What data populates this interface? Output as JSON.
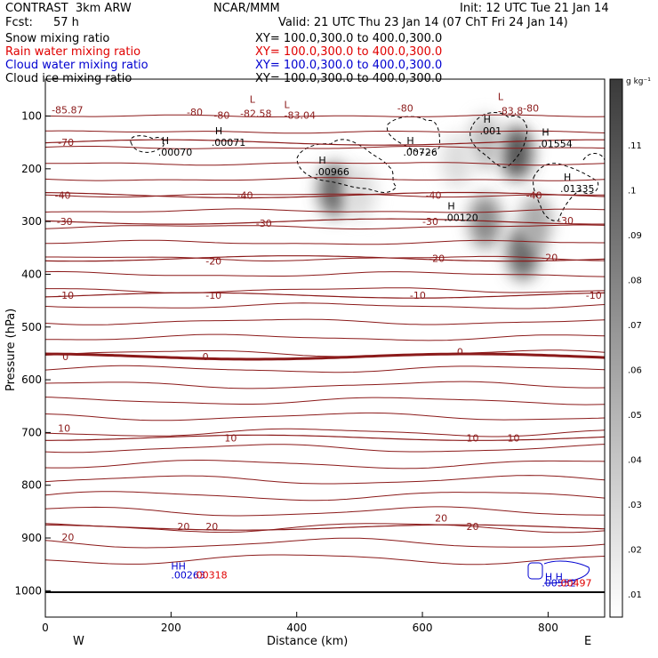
{
  "header": {
    "title_left": "CONTRAST  3km ARW",
    "title_center": "NCAR/MMM",
    "init": "Init: 12 UTC Tue 21 Jan 14",
    "fcst_label": "Fcst:",
    "fcst_value": "57 h",
    "valid": "Valid: 21 UTC Thu 23 Jan 14 (07 ChT Fri 24 Jan 14)"
  },
  "fields": [
    {
      "label": "Snow mixing ratio",
      "xy": "XY= 100.0,300.0 to 400.0,300.0",
      "color": "#000000"
    },
    {
      "label": "Rain water mixing ratio",
      "xy": "XY= 100.0,300.0 to 400.0,300.0",
      "color": "#e00000"
    },
    {
      "label": "Cloud water mixing ratio",
      "xy": "XY= 100.0,300.0 to 400.0,300.0",
      "color": "#0000d0"
    },
    {
      "label": "Cloud ice mixing ratio",
      "xy": "XY= 100.0,300.0 to 400.0,300.0",
      "color": "#000000"
    }
  ],
  "chart_data": {
    "type": "cross-section",
    "xlabel": "Distance (km)",
    "ylabel": "Pressure (hPa)",
    "xlim": [
      0,
      890
    ],
    "ylim": [
      1050,
      30
    ],
    "x_ticks": [
      "0",
      "200",
      "400",
      "600",
      "800"
    ],
    "y_ticks": [
      "100",
      "200",
      "300",
      "400",
      "500",
      "600",
      "700",
      "800",
      "900",
      "1000"
    ],
    "west_label": "W",
    "east_label": "E",
    "surface_pressure": 1005,
    "contour_color": "#8b1a1a",
    "temperature_contours": [
      {
        "label": "-70",
        "p": 150
      },
      {
        "label": "-40",
        "p": 250
      },
      {
        "label": "-30",
        "p": 300
      },
      {
        "label": "-20",
        "p": 370
      },
      {
        "label": "-10",
        "p": 440
      },
      {
        "label": "0",
        "p": 556,
        "bold": true
      },
      {
        "label": "10",
        "p": 710
      },
      {
        "label": "20",
        "p": 880
      }
    ],
    "contour_labels": [
      {
        "t": "-85.87",
        "x": 10,
        "p": 88
      },
      {
        "t": "-80",
        "x": 225,
        "p": 92
      },
      {
        "t": "-80",
        "x": 268,
        "p": 98
      },
      {
        "t": "-80",
        "x": 560,
        "p": 85
      },
      {
        "t": "-80",
        "x": 760,
        "p": 85
      },
      {
        "t": "-82.58",
        "x": 310,
        "p": 95
      },
      {
        "t": "-83.04",
        "x": 380,
        "p": 98
      },
      {
        "t": "-83.8",
        "x": 720,
        "p": 90
      },
      {
        "t": "-70",
        "x": 20,
        "p": 150
      },
      {
        "t": "-40",
        "x": 15,
        "p": 250
      },
      {
        "t": "-40",
        "x": 305,
        "p": 250
      },
      {
        "t": "-40",
        "x": 605,
        "p": 250
      },
      {
        "t": "-40",
        "x": 765,
        "p": 250
      },
      {
        "t": "-30",
        "x": 18,
        "p": 300
      },
      {
        "t": "-30",
        "x": 335,
        "p": 303
      },
      {
        "t": "-30",
        "x": 600,
        "p": 300
      },
      {
        "t": "-30",
        "x": 815,
        "p": 298
      },
      {
        "t": "-20",
        "x": 255,
        "p": 375
      },
      {
        "t": "-20",
        "x": 610,
        "p": 370
      },
      {
        "t": "-20",
        "x": 790,
        "p": 368
      },
      {
        "t": "-10",
        "x": 20,
        "p": 440
      },
      {
        "t": "-10",
        "x": 255,
        "p": 440
      },
      {
        "t": "-10",
        "x": 580,
        "p": 440
      },
      {
        "t": "-10",
        "x": 860,
        "p": 440
      },
      {
        "t": "0",
        "x": 27,
        "p": 556
      },
      {
        "t": "0",
        "x": 250,
        "p": 556
      },
      {
        "t": "0",
        "x": 655,
        "p": 547
      },
      {
        "t": "10",
        "x": 20,
        "p": 692
      },
      {
        "t": "10",
        "x": 285,
        "p": 710
      },
      {
        "t": "10",
        "x": 670,
        "p": 710
      },
      {
        "t": "10",
        "x": 735,
        "p": 710
      },
      {
        "t": "20",
        "x": 26,
        "p": 898
      },
      {
        "t": "20",
        "x": 210,
        "p": 878
      },
      {
        "t": "20",
        "x": 255,
        "p": 878
      },
      {
        "t": "20",
        "x": 620,
        "p": 862
      },
      {
        "t": "20",
        "x": 670,
        "p": 878
      }
    ],
    "extrema": [
      {
        "type": "H",
        "value": ".00070",
        "x": 185,
        "p": 158
      },
      {
        "type": "H",
        "value": ".00071",
        "x": 270,
        "p": 140
      },
      {
        "type": "H",
        "value": ".00966",
        "x": 435,
        "p": 195
      },
      {
        "type": "H",
        "value": ".00726",
        "x": 575,
        "p": 158
      },
      {
        "type": "H",
        "value": ".001",
        "x": 697,
        "p": 118
      },
      {
        "type": "H",
        "value": ".01554",
        "x": 790,
        "p": 142
      },
      {
        "type": "H",
        "value": ".01335",
        "x": 825,
        "p": 227
      },
      {
        "type": "H",
        "value": ".00120",
        "x": 640,
        "p": 282
      },
      {
        "type": "L",
        "value": "",
        "x": 380,
        "p": 90
      },
      {
        "type": "L",
        "value": "",
        "x": 325,
        "p": 80
      },
      {
        "type": "L",
        "value": "",
        "x": 720,
        "p": 75
      }
    ],
    "surface_labels": [
      {
        "text": "HH",
        "x": 200,
        "p": 960,
        "color": "#0000d0"
      },
      {
        "text": ".00263",
        "x": 200,
        "p": 977,
        "color": "#0000d0"
      },
      {
        "text": ".00318",
        "x": 235,
        "p": 977,
        "color": "#e00000"
      },
      {
        "text": "H H",
        "x": 795,
        "p": 980,
        "color": "#0000d0"
      },
      {
        "text": ".00552",
        "x": 790,
        "p": 992,
        "color": "#0000d0"
      },
      {
        "text": ".00497",
        "x": 815,
        "p": 992,
        "color": "#e00000"
      }
    ],
    "colorbar": {
      "unit": "g kg⁻¹",
      "labels": [
        ".11",
        ".1",
        ".09",
        ".08",
        ".07",
        ".06",
        ".05",
        ".04",
        ".03",
        ".02",
        ".01"
      ]
    },
    "shaded_cells": [
      {
        "x": 460,
        "p": 240,
        "v": 0.09
      },
      {
        "x": 500,
        "p": 245,
        "v": 0.02
      },
      {
        "x": 750,
        "p": 170,
        "v": 0.1
      },
      {
        "x": 700,
        "p": 150,
        "v": 0.04
      },
      {
        "x": 700,
        "p": 300,
        "v": 0.07
      },
      {
        "x": 760,
        "p": 360,
        "v": 0.09
      },
      {
        "x": 780,
        "p": 300,
        "v": 0.05
      },
      {
        "x": 655,
        "p": 185,
        "v": 0.02
      }
    ]
  }
}
